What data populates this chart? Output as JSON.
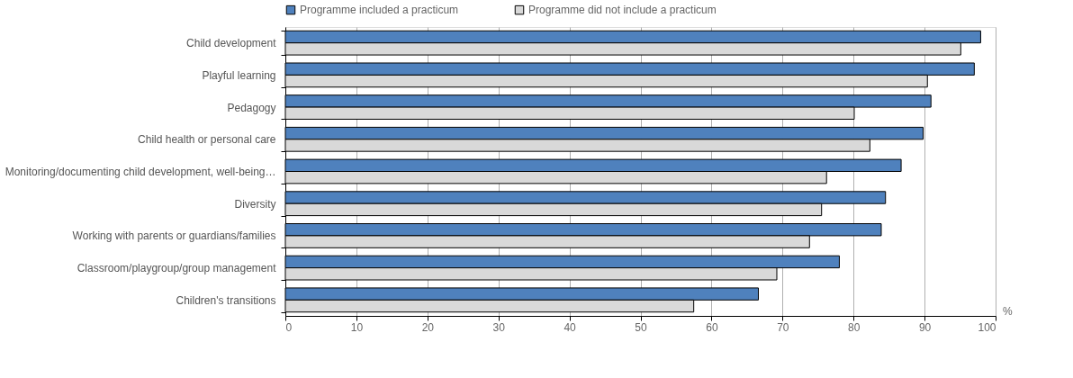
{
  "chart_data": {
    "type": "bar",
    "orientation": "horizontal",
    "categories": [
      "Child development",
      "Playful learning",
      "Pedagogy",
      "Child health or personal care",
      "Monitoring/documenting child development, well-being…",
      "Diversity",
      "Working with parents or guardians/families",
      "Classroom/playgroup/group management",
      "Children's transitions"
    ],
    "series": [
      {
        "name": "Programme included a practicum",
        "color": "#4f81bd",
        "values": [
          97.9,
          97.0,
          90.9,
          89.8,
          86.7,
          84.5,
          83.9,
          78.0,
          66.6
        ]
      },
      {
        "name": "Programme did not include a practicum",
        "color": "#d9d9d9",
        "values": [
          95.1,
          90.4,
          80.1,
          82.3,
          76.2,
          75.5,
          73.8,
          69.2,
          57.5
        ]
      }
    ],
    "xlim": [
      0,
      100
    ],
    "xticks": [
      0,
      10,
      20,
      30,
      40,
      50,
      60,
      70,
      80,
      90,
      100
    ],
    "grid": "x",
    "legend": "top",
    "annotations": [
      "%"
    ]
  }
}
